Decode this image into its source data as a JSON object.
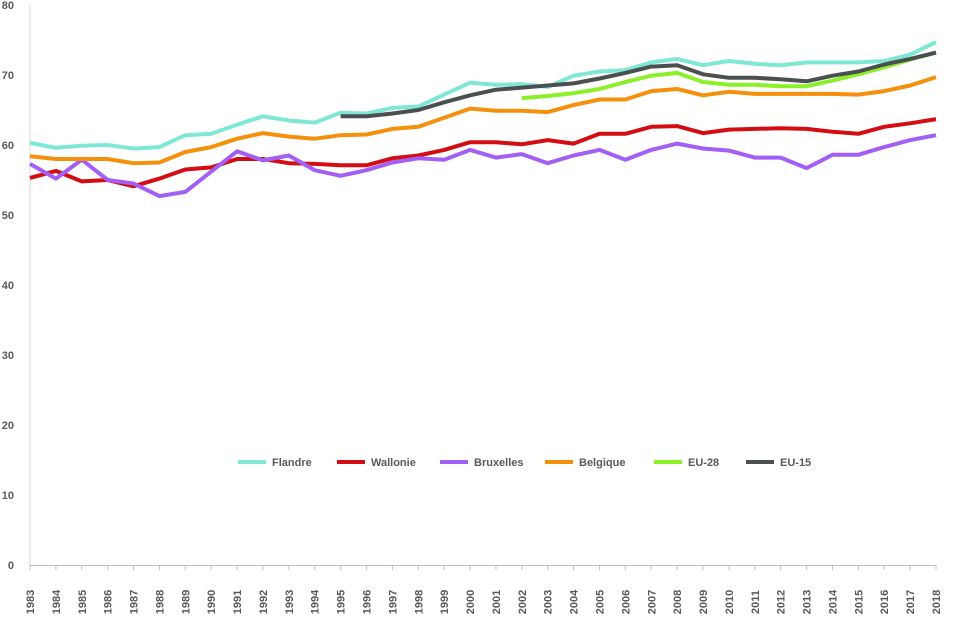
{
  "chart_data": {
    "type": "line",
    "x": [
      1983,
      1984,
      1985,
      1986,
      1987,
      1988,
      1989,
      1990,
      1991,
      1992,
      1993,
      1994,
      1995,
      1996,
      1997,
      1998,
      1999,
      2000,
      2001,
      2002,
      2003,
      2004,
      2005,
      2006,
      2007,
      2008,
      2009,
      2010,
      2011,
      2012,
      2013,
      2014,
      2015,
      2016,
      2017,
      2018
    ],
    "ylim": [
      0,
      80
    ],
    "yticks": [
      0,
      10,
      20,
      30,
      40,
      50,
      60,
      70,
      80
    ],
    "grid": false,
    "legend_position": "center-bottom",
    "series": [
      {
        "name": "Flandre",
        "color": "#7fe8d4",
        "values": [
          60.3,
          59.6,
          59.9,
          60.0,
          59.5,
          59.7,
          61.4,
          61.6,
          62.9,
          64.1,
          63.5,
          63.2,
          64.6,
          64.5,
          65.3,
          65.5,
          67.2,
          68.9,
          68.6,
          68.7,
          68.3,
          69.9,
          70.5,
          70.7,
          71.8,
          72.3,
          71.4,
          72.0,
          71.6,
          71.4,
          71.8,
          71.8,
          71.8,
          72.0,
          72.9,
          74.7
        ]
      },
      {
        "name": "Wallonie",
        "color": "#d40d12",
        "values": [
          55.3,
          56.3,
          54.8,
          55.0,
          54.1,
          55.2,
          56.5,
          56.8,
          58.0,
          58.0,
          57.4,
          57.3,
          57.1,
          57.1,
          58.1,
          58.5,
          59.3,
          60.4,
          60.4,
          60.1,
          60.7,
          60.2,
          61.6,
          61.6,
          62.6,
          62.7,
          61.7,
          62.2,
          62.3,
          62.4,
          62.3,
          61.9,
          61.6,
          62.6,
          63.1,
          63.7
        ]
      },
      {
        "name": "Bruxelles",
        "color": "#a35ef5",
        "values": [
          57.3,
          55.2,
          57.9,
          55.0,
          54.5,
          52.7,
          53.3,
          56.2,
          59.1,
          57.8,
          58.5,
          56.4,
          55.6,
          56.4,
          57.5,
          58.1,
          57.9,
          59.3,
          58.2,
          58.7,
          57.4,
          58.5,
          59.3,
          57.9,
          59.3,
          60.2,
          59.5,
          59.2,
          58.2,
          58.2,
          56.7,
          58.6,
          58.6,
          59.7,
          60.7,
          61.4
        ]
      },
      {
        "name": "Belgique",
        "color": "#f5900c",
        "values": [
          58.4,
          58.0,
          58.0,
          58.0,
          57.4,
          57.5,
          59.0,
          59.7,
          60.9,
          61.7,
          61.2,
          60.9,
          61.4,
          61.5,
          62.3,
          62.6,
          63.9,
          65.2,
          64.9,
          64.9,
          64.7,
          65.7,
          66.5,
          66.5,
          67.7,
          68.0,
          67.1,
          67.6,
          67.3,
          67.3,
          67.3,
          67.3,
          67.2,
          67.7,
          68.5,
          69.7
        ]
      },
      {
        "name": "EU-28",
        "color": "#8cf028",
        "values": [
          null,
          null,
          null,
          null,
          null,
          null,
          null,
          null,
          null,
          null,
          null,
          null,
          null,
          null,
          null,
          null,
          null,
          null,
          null,
          66.7,
          67.0,
          67.4,
          68.0,
          69.0,
          69.9,
          70.3,
          69.0,
          68.6,
          68.6,
          68.4,
          68.4,
          69.2,
          70.1,
          71.1,
          72.2,
          73.2
        ]
      },
      {
        "name": "EU-15",
        "color": "#4a4f4f",
        "values": [
          null,
          null,
          null,
          null,
          null,
          null,
          null,
          null,
          null,
          null,
          null,
          null,
          64.1,
          64.1,
          64.5,
          65.0,
          66.1,
          67.1,
          67.9,
          68.2,
          68.5,
          68.8,
          69.5,
          70.3,
          71.2,
          71.4,
          70.1,
          69.6,
          69.6,
          69.4,
          69.1,
          69.9,
          70.5,
          71.5,
          72.3,
          73.2
        ]
      }
    ]
  }
}
